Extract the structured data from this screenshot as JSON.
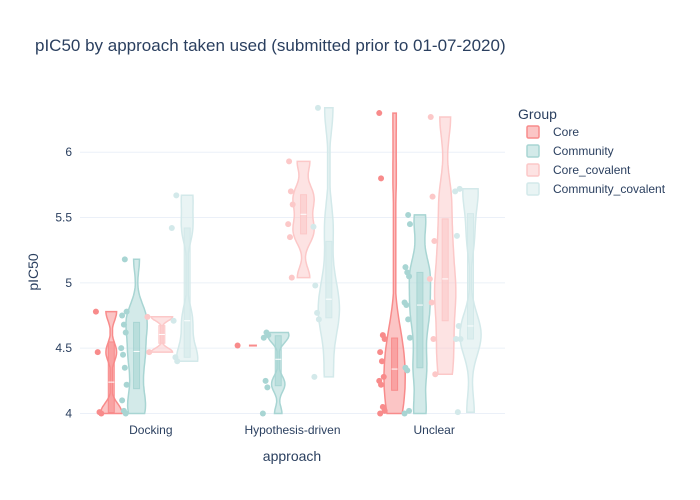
{
  "chart_data": {
    "type": "violin",
    "title": "pIC50 by approach taken used (submitted prior to 01-07-2020)",
    "xlabel": "approach",
    "ylabel": "pIC50",
    "categories": [
      "Docking",
      "Hypothesis-driven",
      "Unclear"
    ],
    "yticks": [
      "4",
      "4.5",
      "5",
      "5.5",
      "6"
    ],
    "ylim": [
      3.95,
      6.4
    ],
    "grid": true,
    "legend": {
      "title": "Group",
      "placement": "right",
      "entries": [
        "Core",
        "Community",
        "Core_covalent",
        "Community_covalent"
      ]
    },
    "series": [
      {
        "name": "Core",
        "color": "#f88b8b",
        "groups": [
          {
            "category": "Docking",
            "points": [
              4.78,
              4.47,
              4.01,
              4.0
            ]
          },
          {
            "category": "Hypothesis-driven",
            "points": [
              4.52
            ]
          },
          {
            "category": "Unclear",
            "points": [
              6.3,
              5.8,
              4.6,
              4.57,
              4.47,
              4.4,
              4.28,
              4.25,
              4.22,
              4.05,
              4.02,
              4.0
            ]
          }
        ]
      },
      {
        "name": "Community",
        "color": "#a8d5d3",
        "groups": [
          {
            "category": "Docking",
            "points": [
              5.18,
              4.78,
              4.75,
              4.68,
              4.62,
              4.5,
              4.45,
              4.35,
              4.22,
              4.1,
              4.02,
              4.0
            ]
          },
          {
            "category": "Hypothesis-driven",
            "points": [
              4.62,
              4.6,
              4.58,
              4.25,
              4.2,
              4.0
            ]
          },
          {
            "category": "Unclear",
            "points": [
              5.52,
              5.45,
              5.12,
              5.08,
              5.05,
              4.85,
              4.83,
              4.72,
              4.58,
              4.35,
              4.33,
              4.02,
              4.0
            ]
          }
        ]
      },
      {
        "name": "Core_covalent",
        "color": "#fcc8c8",
        "groups": [
          {
            "category": "Docking",
            "points": [
              4.74,
              4.47
            ]
          },
          {
            "category": "Hypothesis-driven",
            "points": [
              5.93,
              5.7,
              5.6,
              5.45,
              5.35,
              5.04
            ]
          },
          {
            "category": "Unclear",
            "points": [
              6.27,
              5.66,
              5.32,
              5.03,
              4.85,
              4.57,
              4.3
            ]
          }
        ]
      },
      {
        "name": "Community_covalent",
        "color": "#d3e9ea",
        "groups": [
          {
            "category": "Docking",
            "points": [
              5.67,
              5.42,
              4.71,
              4.43,
              4.4
            ]
          },
          {
            "category": "Hypothesis-driven",
            "points": [
              6.34,
              5.43,
              4.98,
              4.77,
              4.72,
              4.28
            ]
          },
          {
            "category": "Unclear",
            "points": [
              5.72,
              5.7,
              5.36,
              4.67,
              4.57,
              4.57,
              4.01
            ]
          }
        ]
      }
    ]
  }
}
